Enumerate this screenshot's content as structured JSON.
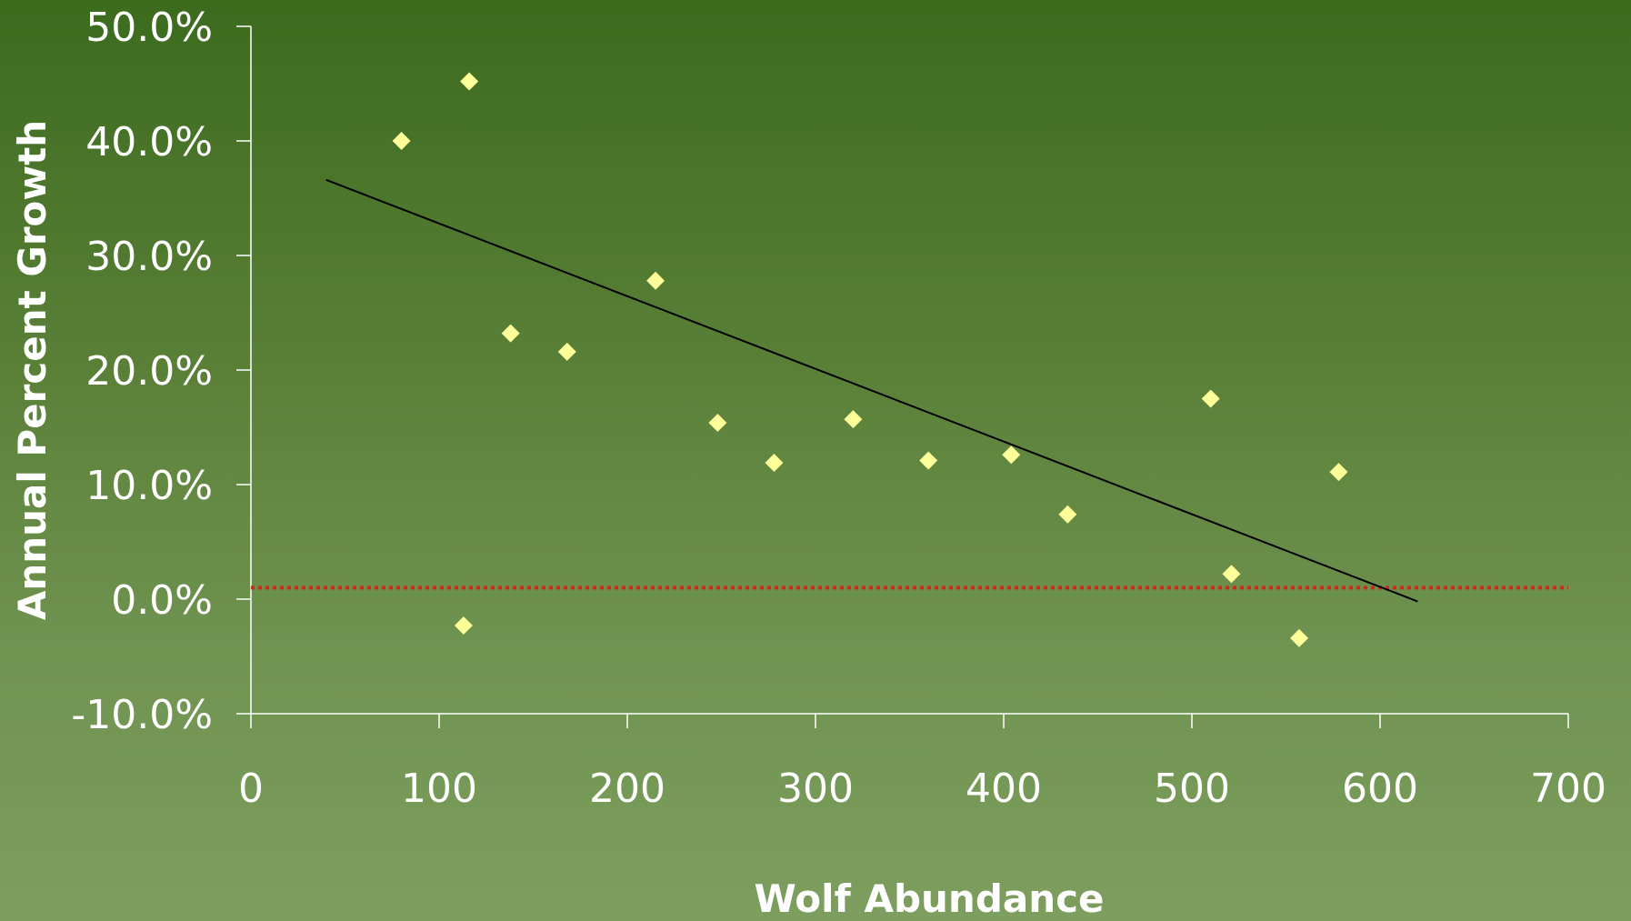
{
  "chart_data": {
    "type": "scatter",
    "title": "",
    "xlabel": "Wolf Abundance",
    "ylabel": "Annual Percent Growth",
    "xlim": [
      0,
      700
    ],
    "ylim": [
      -10,
      50
    ],
    "x_ticks": [
      0,
      100,
      200,
      300,
      400,
      500,
      600,
      700
    ],
    "y_ticks": [
      -10,
      0,
      10,
      20,
      30,
      40,
      50
    ],
    "x_tick_labels": [
      "0",
      "100",
      "200",
      "300",
      "400",
      "500",
      "600",
      "700"
    ],
    "y_tick_labels": [
      "-10.0%",
      "0.0%",
      "10.0%",
      "20.0%",
      "30.0%",
      "40.0%",
      "50.0%"
    ],
    "grid": false,
    "legend": "none",
    "series": [
      {
        "points": [
          [
            80,
            40.0
          ],
          [
            116,
            45.2
          ],
          [
            113,
            -2.3
          ],
          [
            138,
            23.2
          ],
          [
            168,
            21.6
          ],
          [
            215,
            27.8
          ],
          [
            248,
            15.4
          ],
          [
            278,
            11.9
          ],
          [
            320,
            15.7
          ],
          [
            360,
            12.1
          ],
          [
            404,
            12.6
          ],
          [
            434,
            7.4
          ],
          [
            510,
            17.5
          ],
          [
            521,
            2.2
          ],
          [
            557,
            -3.4
          ],
          [
            578,
            11.1
          ]
        ],
        "color": "#ffff99",
        "marker": "diamond"
      }
    ],
    "trendline": {
      "from": [
        40,
        36.6
      ],
      "to": [
        620,
        -0.2
      ],
      "color": "#000000"
    },
    "reference_line": {
      "y": 1.0,
      "color": "#cc2a1a",
      "style": "dotted"
    }
  }
}
